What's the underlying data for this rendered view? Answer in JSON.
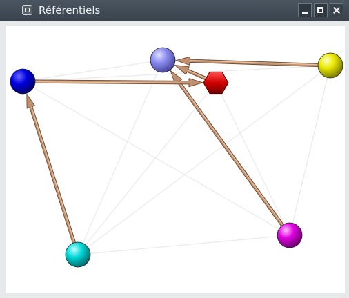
{
  "window": {
    "title": "Référentiels",
    "buttons": {
      "minimize": "minimize",
      "maximize": "maximize",
      "close": "close"
    }
  },
  "graph": {
    "nodes": [
      {
        "id": "blue",
        "shape": "sphere",
        "color": "#0000dd"
      },
      {
        "id": "lavender",
        "shape": "sphere",
        "color": "#8888ee"
      },
      {
        "id": "red",
        "shape": "hexagon",
        "color": "#cc0000"
      },
      {
        "id": "yellow",
        "shape": "sphere",
        "color": "#dddd00"
      },
      {
        "id": "cyan",
        "shape": "sphere",
        "color": "#00cccc"
      },
      {
        "id": "magenta",
        "shape": "sphere",
        "color": "#dd00dd"
      }
    ],
    "arrows": [
      {
        "from": "yellow",
        "to": "lavender"
      },
      {
        "from": "red",
        "to": "lavender"
      },
      {
        "from": "magenta",
        "to": "lavender"
      },
      {
        "from": "blue",
        "to": "red"
      },
      {
        "from": "cyan",
        "to": "blue"
      }
    ],
    "faint_edges": [
      [
        "blue",
        "magenta"
      ],
      [
        "blue",
        "yellow"
      ],
      [
        "cyan",
        "lavender"
      ],
      [
        "cyan",
        "red"
      ],
      [
        "cyan",
        "yellow"
      ],
      [
        "cyan",
        "magenta"
      ],
      [
        "lavender",
        "magenta"
      ],
      [
        "red",
        "magenta"
      ],
      [
        "yellow",
        "magenta"
      ],
      [
        "blue",
        "lavender"
      ]
    ],
    "arrow_color": "#c09070"
  }
}
